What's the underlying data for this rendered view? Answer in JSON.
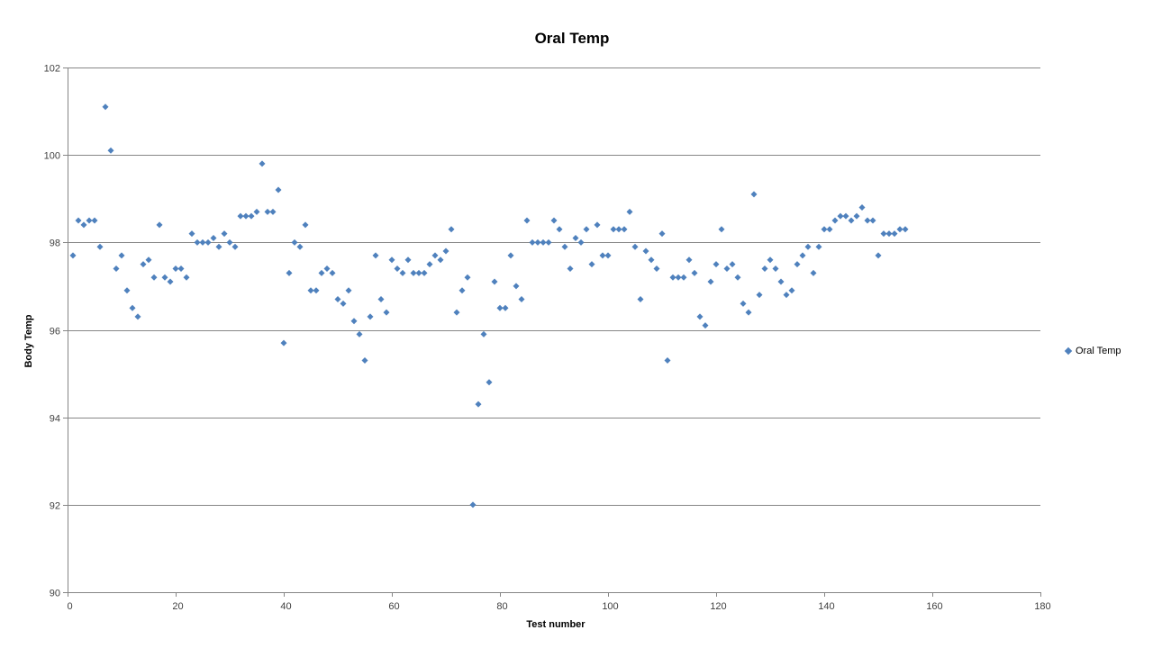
{
  "title": "Oral Temp",
  "colors": {
    "marker": "#4f81bd",
    "gridline": "#868686",
    "axis": "#868686",
    "text": "#000000"
  },
  "legend": {
    "label": "Oral Temp"
  },
  "chart_data": {
    "type": "scatter",
    "title": "Oral Temp",
    "xlabel": "Test number",
    "ylabel": "Body Temp",
    "xlim": [
      0,
      180
    ],
    "ylim": [
      90,
      102
    ],
    "xticks": [
      0,
      20,
      40,
      60,
      80,
      100,
      120,
      140,
      160,
      180
    ],
    "yticks": [
      90,
      92,
      94,
      96,
      98,
      100,
      102
    ],
    "grid": "horizontal-only",
    "legend_position": "right",
    "series": [
      {
        "name": "Oral Temp",
        "marker": "diamond",
        "color": "#4f81bd",
        "x": [
          1,
          2,
          3,
          4,
          5,
          6,
          7,
          8,
          9,
          10,
          11,
          12,
          13,
          14,
          15,
          16,
          17,
          18,
          19,
          20,
          21,
          22,
          23,
          24,
          25,
          26,
          27,
          28,
          29,
          30,
          31,
          32,
          33,
          34,
          35,
          36,
          37,
          38,
          39,
          40,
          41,
          42,
          43,
          44,
          45,
          46,
          47,
          48,
          49,
          50,
          51,
          52,
          53,
          54,
          55,
          56,
          57,
          58,
          59,
          60,
          61,
          62,
          63,
          64,
          65,
          66,
          67,
          68,
          69,
          70,
          71,
          72,
          73,
          74,
          75,
          76,
          77,
          78,
          79,
          80,
          81,
          82,
          83,
          84,
          85,
          86,
          87,
          88,
          89,
          90,
          91,
          92,
          93,
          94,
          95,
          96,
          97,
          98,
          99,
          100,
          101,
          102,
          103,
          104,
          105,
          106,
          107,
          108,
          109,
          110,
          111,
          112,
          113,
          114,
          115,
          116,
          117,
          118,
          119,
          120,
          121,
          122,
          123,
          124,
          125,
          126,
          127,
          128,
          129,
          130,
          131,
          132,
          133,
          134,
          135,
          136,
          137,
          138,
          139,
          140,
          141,
          142,
          143,
          144,
          145,
          146,
          147,
          148,
          149,
          150,
          151,
          152,
          153,
          154,
          155
        ],
        "y": [
          97.7,
          98.5,
          98.4,
          98.5,
          98.5,
          97.9,
          101.1,
          100.1,
          97.4,
          97.7,
          96.9,
          96.5,
          96.3,
          97.5,
          97.6,
          97.2,
          98.4,
          97.2,
          97.1,
          97.4,
          97.4,
          97.2,
          98.2,
          98.0,
          98.0,
          98.0,
          98.1,
          97.9,
          98.2,
          98.0,
          97.9,
          98.6,
          98.6,
          98.6,
          98.7,
          99.8,
          98.7,
          98.7,
          99.2,
          95.7,
          97.3,
          98.0,
          97.9,
          98.4,
          96.9,
          96.9,
          97.3,
          97.4,
          97.3,
          96.7,
          96.6,
          96.9,
          96.2,
          95.9,
          95.3,
          96.3,
          97.7,
          96.7,
          96.4,
          97.6,
          97.4,
          97.3,
          97.6,
          97.3,
          97.3,
          97.3,
          97.5,
          97.7,
          97.6,
          97.8,
          98.3,
          96.4,
          96.9,
          97.2,
          92.0,
          94.3,
          95.9,
          94.8,
          97.1,
          96.5,
          96.5,
          97.7,
          97.0,
          96.7,
          98.5,
          98.0,
          98.0,
          98.0,
          98.0,
          98.5,
          98.3,
          97.9,
          97.4,
          98.1,
          98.0,
          98.3,
          97.5,
          98.4,
          97.7,
          97.7,
          98.3,
          98.3,
          98.3,
          98.7,
          97.9,
          96.7,
          97.8,
          97.6,
          97.4,
          98.2,
          95.3,
          97.2,
          97.2,
          97.2,
          97.6,
          97.3,
          96.3,
          96.1,
          97.1,
          97.5,
          98.3,
          97.4,
          97.5,
          97.2,
          96.6,
          96.4,
          99.1,
          96.8,
          97.4,
          97.6,
          97.4,
          97.1,
          96.8,
          96.9,
          97.5,
          97.7,
          97.9,
          97.3,
          97.9,
          98.3,
          98.3,
          98.5,
          98.6,
          98.6,
          98.5,
          98.6,
          98.8,
          98.5,
          98.5,
          97.7,
          98.2,
          98.2,
          98.2,
          98.3,
          98.3
        ]
      }
    ]
  }
}
